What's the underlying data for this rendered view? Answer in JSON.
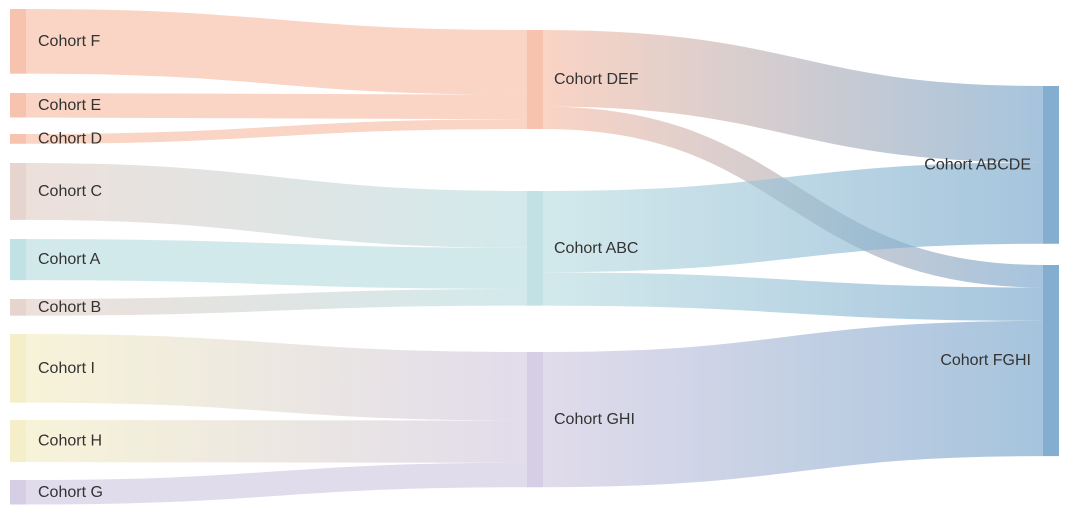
{
  "nodes": [
    {
      "id": "F",
      "label": "Cohort F",
      "color": "#f7b9a0"
    },
    {
      "id": "E",
      "label": "Cohort E",
      "color": "#f7b9a0"
    },
    {
      "id": "D",
      "label": "Cohort D",
      "color": "#f7b9a0"
    },
    {
      "id": "C",
      "label": "Cohort C",
      "color": "#e2cdc5"
    },
    {
      "id": "A",
      "label": "Cohort A",
      "color": "#b7dce0"
    },
    {
      "id": "B",
      "label": "Cohort B",
      "color": "#e2cdc5"
    },
    {
      "id": "I",
      "label": "Cohort I",
      "color": "#f2ecc0"
    },
    {
      "id": "H",
      "label": "Cohort H",
      "color": "#f2ecc0"
    },
    {
      "id": "G",
      "label": "Cohort G",
      "color": "#cfc6df"
    },
    {
      "id": "DEF",
      "label": "Cohort DEF",
      "color": "#f7b9a0"
    },
    {
      "id": "ABC",
      "label": "Cohort ABC",
      "color": "#b7dce0"
    },
    {
      "id": "GHI",
      "label": "Cohort GHI",
      "color": "#cfc6df"
    },
    {
      "id": "ABCDE",
      "label": "Cohort ABCDE",
      "color": "#6fa0c8"
    },
    {
      "id": "FGHI",
      "label": "Cohort FGHI",
      "color": "#6fa0c8"
    }
  ],
  "links": [
    {
      "source": "F",
      "target": "DEF",
      "value": 66
    },
    {
      "source": "E",
      "target": "DEF",
      "value": 25
    },
    {
      "source": "D",
      "target": "DEF",
      "value": 10
    },
    {
      "source": "C",
      "target": "ABC",
      "value": 58
    },
    {
      "source": "A",
      "target": "ABC",
      "value": 42
    },
    {
      "source": "B",
      "target": "ABC",
      "value": 17
    },
    {
      "source": "I",
      "target": "GHI",
      "value": 70
    },
    {
      "source": "H",
      "target": "GHI",
      "value": 43
    },
    {
      "source": "G",
      "target": "GHI",
      "value": 25
    },
    {
      "source": "DEF",
      "target": "ABCDE",
      "value": 78
    },
    {
      "source": "DEF",
      "target": "FGHI",
      "value": 23
    },
    {
      "source": "ABC",
      "target": "ABCDE",
      "value": 83
    },
    {
      "source": "ABC",
      "target": "FGHI",
      "value": 34
    },
    {
      "source": "GHI",
      "target": "FGHI",
      "value": 138
    }
  ]
}
